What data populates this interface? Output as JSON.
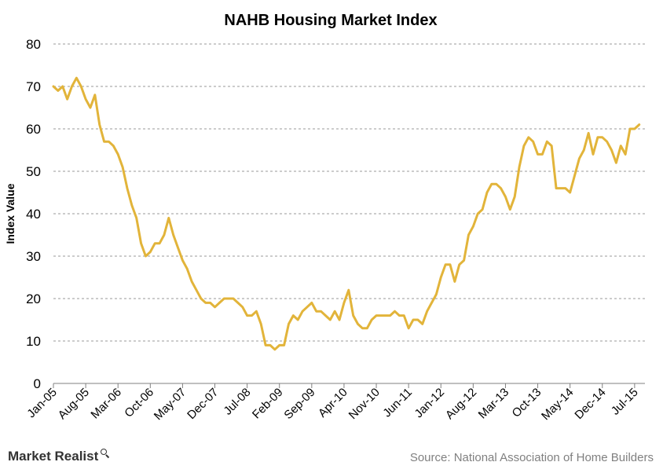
{
  "chart_data": {
    "type": "line",
    "title": "NAHB Housing Market Index",
    "ylabel": "Index Value",
    "xlabel": "",
    "ylim": [
      0,
      80
    ],
    "yticks": [
      "0",
      "10",
      "20",
      "30",
      "40",
      "50",
      "60",
      "70",
      "80"
    ],
    "xticks": [
      "Jan-05",
      "Aug-05",
      "Mar-06",
      "Oct-06",
      "May-07",
      "Dec-07",
      "Jul-08",
      "Feb-09",
      "Sep-09",
      "Apr-10",
      "Nov-10",
      "Jun-11",
      "Jan-12",
      "Aug-12",
      "Mar-13",
      "Oct-13",
      "May-14",
      "Dec-14",
      "Jul-15"
    ],
    "x_start": "Jan-05",
    "x_end": "Sep-15",
    "grid": "horizontal dashed",
    "legend": "none",
    "series": [
      {
        "color": "#E2B43A",
        "values": [
          70,
          69,
          70,
          67,
          70,
          72,
          70,
          67,
          65,
          68,
          61,
          57,
          57,
          56,
          54,
          51,
          46,
          42,
          39,
          33,
          30,
          31,
          33,
          33,
          35,
          39,
          35,
          32,
          29,
          27,
          24,
          22,
          20,
          19,
          19,
          18,
          19,
          20,
          20,
          20,
          19,
          18,
          16,
          16,
          17,
          14,
          9,
          9,
          8,
          9,
          9,
          14,
          16,
          15,
          17,
          18,
          19,
          17,
          17,
          16,
          15,
          17,
          15,
          19,
          22,
          16,
          14,
          13,
          13,
          15,
          16,
          16,
          16,
          16,
          17,
          16,
          16,
          13,
          15,
          15,
          14,
          17,
          19,
          21,
          25,
          28,
          28,
          24,
          28,
          29,
          35,
          37,
          40,
          41,
          45,
          47,
          47,
          46,
          44,
          41,
          44,
          51,
          56,
          58,
          57,
          54,
          54,
          57,
          56,
          46,
          46,
          46,
          45,
          49,
          53,
          55,
          59,
          54,
          58,
          58,
          57,
          55,
          52,
          56,
          54,
          60,
          60,
          61
        ]
      }
    ]
  },
  "footer": {
    "brand_text": "Market Realist",
    "source_text": "Source: National Association of Home Builders"
  }
}
